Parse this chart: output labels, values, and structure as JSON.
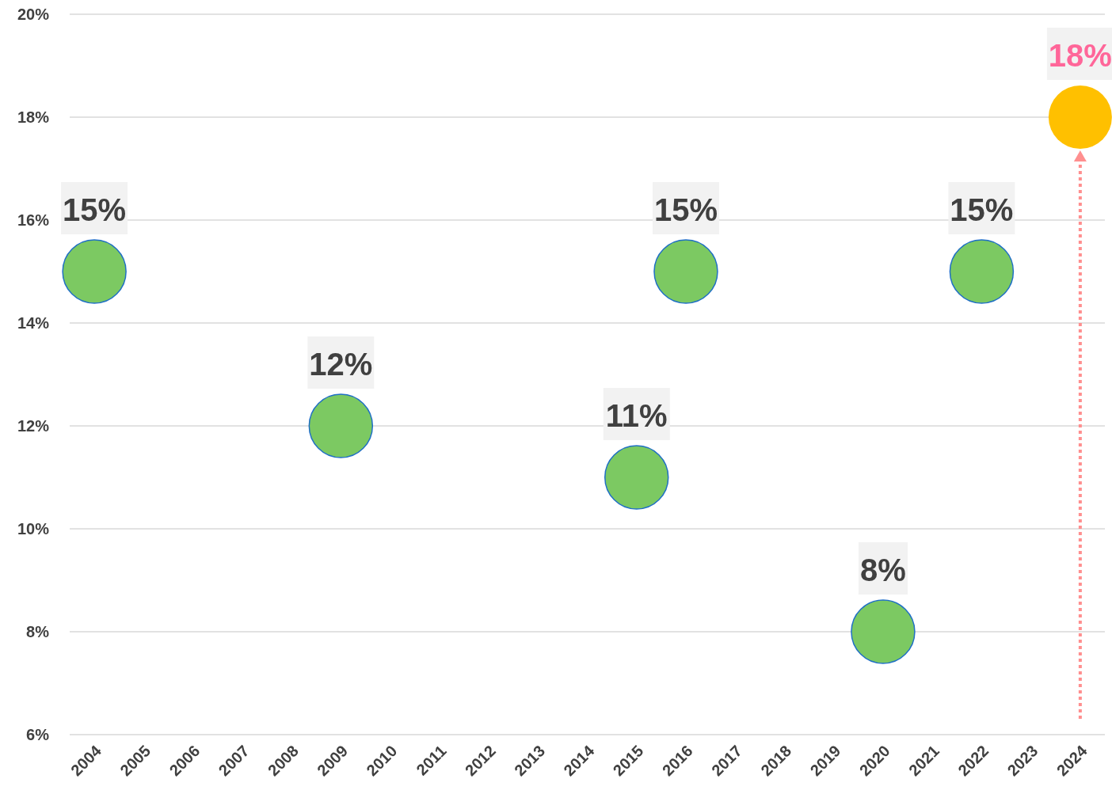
{
  "chart_data": {
    "type": "scatter",
    "categories": [
      "2004",
      "2005",
      "2006",
      "2007",
      "2008",
      "2009",
      "2010",
      "2011",
      "2012",
      "2013",
      "2014",
      "2015",
      "2016",
      "2017",
      "2018",
      "2019",
      "2020",
      "2021",
      "2022",
      "2023",
      "2024"
    ],
    "series": [
      {
        "color": "#7cc962",
        "values": [
          15,
          null,
          null,
          null,
          null,
          12,
          null,
          null,
          null,
          null,
          null,
          11,
          15,
          null,
          null,
          null,
          8,
          null,
          15,
          null,
          null
        ],
        "value_labels": [
          "15%",
          null,
          null,
          null,
          null,
          "12%",
          null,
          null,
          null,
          null,
          null,
          "11%",
          "15%",
          null,
          null,
          null,
          "8%",
          null,
          "15%",
          null,
          null
        ]
      },
      {
        "color": "#ffc000",
        "values": [
          null,
          null,
          null,
          null,
          null,
          null,
          null,
          null,
          null,
          null,
          null,
          null,
          null,
          null,
          null,
          null,
          null,
          null,
          null,
          null,
          18
        ],
        "value_labels": [
          null,
          null,
          null,
          null,
          null,
          null,
          null,
          null,
          null,
          null,
          null,
          null,
          null,
          null,
          null,
          null,
          null,
          null,
          null,
          null,
          "18%"
        ]
      }
    ],
    "ylim": [
      6,
      20
    ],
    "yticks": [
      {
        "value": 6,
        "label": "6%"
      },
      {
        "value": 8,
        "label": "8%"
      },
      {
        "value": 10,
        "label": "10%"
      },
      {
        "value": 12,
        "label": "12%"
      },
      {
        "value": 14,
        "label": "14%"
      },
      {
        "value": 16,
        "label": "16%"
      },
      {
        "value": 18,
        "label": "18%"
      },
      {
        "value": 20,
        "label": "20%"
      }
    ],
    "grid": "y",
    "marker": "circle"
  }
}
